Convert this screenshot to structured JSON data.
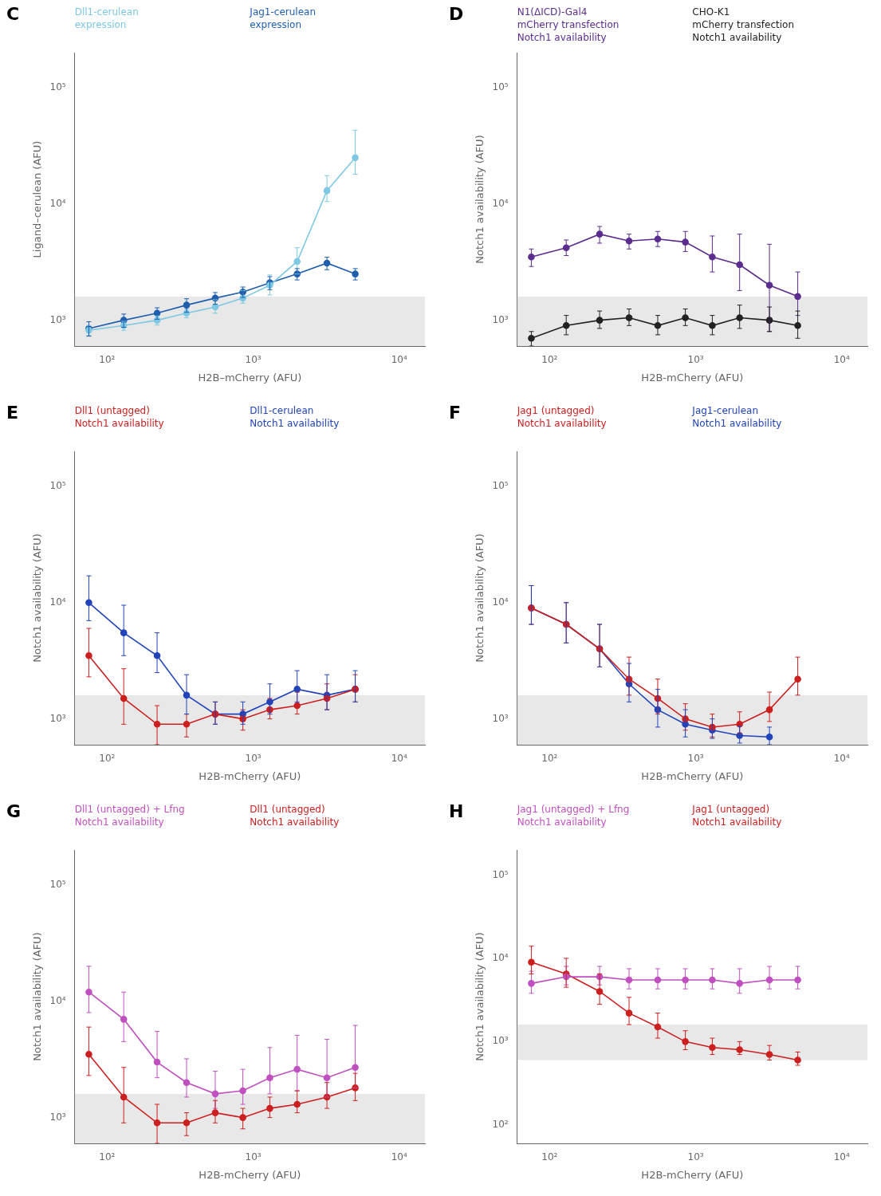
{
  "chart_data": [
    {
      "type": "line",
      "title": "C",
      "log": true,
      "grid": false,
      "marker": "circle",
      "line_style": "solid",
      "xlabel": "H2B–mCherry (AFU)",
      "ylabel": "Ligand–cerulean (AFU)",
      "xlim": [
        60,
        15000
      ],
      "ylim": [
        600,
        200000
      ],
      "xticks": [
        {
          "value": 100,
          "label": "10²"
        },
        {
          "value": 1000,
          "label": "10³"
        },
        {
          "value": 10000,
          "label": "10⁴"
        }
      ],
      "yticks": [
        {
          "value": 1000,
          "label": "10³"
        },
        {
          "value": 10000,
          "label": "10⁴"
        },
        {
          "value": 100000,
          "label": "10⁵"
        }
      ],
      "band": {
        "from": 600,
        "to": 1600,
        "color": "#E8E8E8"
      },
      "series": [
        {
          "color": "#7EC8E3",
          "x": [
            75,
            130,
            220,
            350,
            550,
            850,
            1300,
            2000,
            3200,
            5000
          ],
          "values": [
            820,
            900,
            1000,
            1150,
            1300,
            1550,
            2000,
            3200,
            13000,
            25000
          ],
          "yerr_lo": [
            80,
            80,
            90,
            100,
            150,
            150,
            350,
            700,
            2500,
            7000
          ],
          "yerr_hi": [
            80,
            80,
            90,
            100,
            200,
            250,
            450,
            1000,
            4500,
            18000
          ]
        },
        {
          "color": "#1F5FAD",
          "x": [
            75,
            130,
            220,
            350,
            550,
            850,
            1300,
            2000,
            3200,
            5000
          ],
          "values": [
            850,
            1000,
            1150,
            1350,
            1550,
            1750,
            2100,
            2500,
            3100,
            2500
          ],
          "yerr_lo": [
            120,
            130,
            130,
            180,
            180,
            180,
            270,
            280,
            380,
            280
          ],
          "yerr_hi": [
            120,
            130,
            130,
            180,
            180,
            180,
            270,
            280,
            380,
            280
          ]
        }
      ],
      "annotations": [
        {
          "text": "Dll1-cerulean",
          "color": "#7EC8E3"
        },
        {
          "text": "expression",
          "color": "#7EC8E3"
        },
        {
          "text": "Jag1-cerulean",
          "color": "#1F5FAD"
        },
        {
          "text": "expression",
          "color": "#1F5FAD"
        }
      ]
    },
    {
      "type": "line",
      "title": "D",
      "log": true,
      "grid": false,
      "marker": "circle",
      "line_style": "solid",
      "xlabel": "H2B-mCherry (AFU)",
      "ylabel": "Notch1 availability (AFU)",
      "xlim": [
        60,
        15000
      ],
      "ylim": [
        600,
        200000
      ],
      "xticks": [
        {
          "value": 100,
          "label": "10²"
        },
        {
          "value": 1000,
          "label": "10³"
        },
        {
          "value": 10000,
          "label": "10⁴"
        }
      ],
      "yticks": [
        {
          "value": 1000,
          "label": "10³"
        },
        {
          "value": 10000,
          "label": "10⁴"
        },
        {
          "value": 100000,
          "label": "10⁵"
        }
      ],
      "band": {
        "from": 600,
        "to": 1600,
        "color": "#E8E8E8"
      },
      "series": [
        {
          "color": "#5B2D8E",
          "x": [
            75,
            130,
            220,
            350,
            550,
            850,
            1300,
            2000,
            3200,
            5000
          ],
          "values": [
            3500,
            4200,
            5500,
            4800,
            5000,
            4700,
            3500,
            3000,
            2000,
            1600
          ],
          "yerr_lo": [
            600,
            600,
            900,
            700,
            700,
            800,
            900,
            1200,
            1200,
            500
          ],
          "yerr_hi": [
            600,
            700,
            900,
            700,
            800,
            1100,
            1800,
            2500,
            2500,
            1000
          ]
        },
        {
          "color": "#222222",
          "x": [
            75,
            130,
            220,
            350,
            550,
            850,
            1300,
            2000,
            3200,
            5000
          ],
          "values": [
            700,
            900,
            1000,
            1050,
            900,
            1050,
            900,
            1050,
            1000,
            900
          ],
          "yerr_lo": [
            100,
            150,
            150,
            150,
            150,
            150,
            150,
            200,
            200,
            200
          ],
          "yerr_hi": [
            100,
            200,
            200,
            200,
            200,
            200,
            200,
            300,
            300,
            300
          ]
        }
      ],
      "annotations": [
        {
          "text": "N1(ΔICD)-Gal4",
          "color": "#5B2D8E"
        },
        {
          "text": "mCherry transfection",
          "color": "#5B2D8E"
        },
        {
          "text": "Notch1 availability",
          "color": "#5B2D8E"
        },
        {
          "text": "CHO-K1",
          "color": "#222222"
        },
        {
          "text": "mCherry transfection",
          "color": "#222222"
        },
        {
          "text": "Notch1 availability",
          "color": "#222222"
        }
      ]
    },
    {
      "type": "line",
      "title": "E",
      "log": true,
      "grid": false,
      "marker": "circle",
      "line_style": "solid",
      "xlabel": "H2B-mCherry (AFU)",
      "ylabel": "Notch1 availability (AFU)",
      "xlim": [
        60,
        15000
      ],
      "ylim": [
        600,
        200000
      ],
      "xticks": [
        {
          "value": 100,
          "label": "10²"
        },
        {
          "value": 1000,
          "label": "10³"
        },
        {
          "value": 10000,
          "label": "10⁴"
        }
      ],
      "yticks": [
        {
          "value": 1000,
          "label": "10³"
        },
        {
          "value": 10000,
          "label": "10⁴"
        },
        {
          "value": 100000,
          "label": "10⁵"
        }
      ],
      "band": {
        "from": 600,
        "to": 1600,
        "color": "#E8E8E8"
      },
      "series": [
        {
          "color": "#CC2020",
          "x": [
            75,
            130,
            220,
            350,
            550,
            850,
            1300,
            2000,
            3200,
            5000
          ],
          "values": [
            3500,
            1500,
            900,
            900,
            1100,
            1000,
            1200,
            1300,
            1500,
            1800
          ],
          "yerr_lo": [
            1200,
            600,
            300,
            200,
            200,
            200,
            200,
            200,
            300,
            400
          ],
          "yerr_hi": [
            2500,
            1200,
            400,
            200,
            300,
            200,
            300,
            400,
            500,
            600
          ]
        },
        {
          "color": "#2244BB",
          "x": [
            75,
            130,
            220,
            350,
            550,
            850,
            1300,
            2000,
            3200,
            5000
          ],
          "values": [
            10000,
            5500,
            3500,
            1600,
            1100,
            1100,
            1400,
            1800,
            1600,
            1800
          ],
          "yerr_lo": [
            3000,
            2000,
            1000,
            500,
            200,
            200,
            300,
            400,
            400,
            400
          ],
          "yerr_hi": [
            7000,
            4000,
            2000,
            800,
            300,
            300,
            600,
            800,
            800,
            800
          ]
        }
      ],
      "annotations": [
        {
          "text": "Dll1 (untagged)",
          "color": "#CC2020"
        },
        {
          "text": "Notch1 availability",
          "color": "#CC2020"
        },
        {
          "text": "Dll1-cerulean",
          "color": "#2244BB"
        },
        {
          "text": "Notch1 availability",
          "color": "#2244BB"
        }
      ]
    },
    {
      "type": "line",
      "title": "F",
      "log": true,
      "grid": false,
      "marker": "circle",
      "line_style": "solid",
      "xlabel": "H2B-mCherry (AFU)",
      "ylabel": "Notch1 availability (AFU)",
      "xlim": [
        60,
        15000
      ],
      "ylim": [
        600,
        200000
      ],
      "xticks": [
        {
          "value": 100,
          "label": "10²"
        },
        {
          "value": 1000,
          "label": "10³"
        },
        {
          "value": 10000,
          "label": "10⁴"
        }
      ],
      "yticks": [
        {
          "value": 1000,
          "label": "10³"
        },
        {
          "value": 10000,
          "label": "10⁴"
        },
        {
          "value": 100000,
          "label": "10⁵"
        }
      ],
      "band": {
        "from": 600,
        "to": 1600,
        "color": "#E8E8E8"
      },
      "series": [
        {
          "color": "#CC2020",
          "x": [
            75,
            130,
            220,
            350,
            550,
            850,
            1300,
            2000,
            3200,
            5000
          ],
          "values": [
            9000,
            6500,
            4000,
            2200,
            1500,
            1000,
            850,
            900,
            1200,
            2200
          ],
          "yerr_lo": [
            2500,
            2000,
            1200,
            600,
            400,
            200,
            150,
            150,
            250,
            600
          ],
          "yerr_hi": [
            5000,
            3500,
            2500,
            1200,
            700,
            350,
            250,
            250,
            500,
            1200
          ]
        },
        {
          "color": "#2244BB",
          "x": [
            75,
            130,
            220,
            350,
            550,
            850,
            1300,
            2000,
            3200
          ],
          "values": [
            9000,
            6500,
            4000,
            2000,
            1200,
            900,
            800,
            720,
            700
          ],
          "yerr_lo": [
            2500,
            2000,
            1200,
            600,
            350,
            200,
            120,
            100,
            100
          ],
          "yerr_hi": [
            5000,
            3500,
            2500,
            1000,
            600,
            300,
            200,
            150,
            150
          ]
        }
      ],
      "annotations": [
        {
          "text": "Jag1 (untagged)",
          "color": "#CC2020"
        },
        {
          "text": "Notch1 availability",
          "color": "#CC2020"
        },
        {
          "text": "Jag1-cerulean",
          "color": "#2244BB"
        },
        {
          "text": "Notch1 availability",
          "color": "#2244BB"
        }
      ]
    },
    {
      "type": "line",
      "title": "G",
      "log": true,
      "grid": false,
      "marker": "circle",
      "line_style": "solid",
      "xlabel": "H2B-mCherry (AFU)",
      "ylabel": "Notch1 availability (AFU)",
      "xlim": [
        60,
        15000
      ],
      "ylim": [
        600,
        200000
      ],
      "xticks": [
        {
          "value": 100,
          "label": "10²"
        },
        {
          "value": 1000,
          "label": "10³"
        },
        {
          "value": 10000,
          "label": "10⁴"
        }
      ],
      "yticks": [
        {
          "value": 1000,
          "label": "10³"
        },
        {
          "value": 10000,
          "label": "10⁴"
        },
        {
          "value": 100000,
          "label": "10⁵"
        }
      ],
      "band": {
        "from": 600,
        "to": 1600,
        "color": "#E8E8E8"
      },
      "series": [
        {
          "color": "#C050C0",
          "x": [
            75,
            130,
            220,
            350,
            550,
            850,
            1300,
            2000,
            3200,
            5000
          ],
          "values": [
            12000,
            7000,
            3000,
            2000,
            1600,
            1700,
            2200,
            2600,
            2200,
            2700
          ],
          "yerr_lo": [
            4000,
            2500,
            800,
            500,
            400,
            400,
            600,
            900,
            700,
            900
          ],
          "yerr_hi": [
            8000,
            5000,
            2500,
            1200,
            900,
            900,
            1800,
            2500,
            2500,
            3500
          ]
        },
        {
          "color": "#CC2020",
          "x": [
            75,
            130,
            220,
            350,
            550,
            850,
            1300,
            2000,
            3200,
            5000
          ],
          "values": [
            3500,
            1500,
            900,
            900,
            1100,
            1000,
            1200,
            1300,
            1500,
            1800
          ],
          "yerr_lo": [
            1200,
            600,
            300,
            200,
            200,
            200,
            200,
            200,
            300,
            400
          ],
          "yerr_hi": [
            2500,
            1200,
            400,
            200,
            300,
            200,
            300,
            400,
            500,
            600
          ]
        }
      ],
      "annotations": [
        {
          "text": "Dll1 (untagged) + Lfng",
          "color": "#C050C0"
        },
        {
          "text": "Notch1 availability",
          "color": "#C050C0"
        },
        {
          "text": "Dll1 (untagged)",
          "color": "#CC2020"
        },
        {
          "text": "Notch1 availability",
          "color": "#CC2020"
        }
      ]
    },
    {
      "type": "line",
      "title": "H",
      "log": true,
      "grid": false,
      "marker": "circle",
      "line_style": "solid",
      "xlabel": "H2B-mCherry (AFU)",
      "ylabel": "Notch1 availability (AFU)",
      "xlim": [
        60,
        15000
      ],
      "ylim": [
        60,
        200000
      ],
      "xticks": [
        {
          "value": 100,
          "label": "10²"
        },
        {
          "value": 1000,
          "label": "10³"
        },
        {
          "value": 10000,
          "label": "10⁴"
        }
      ],
      "yticks": [
        {
          "value": 100,
          "label": "10²"
        },
        {
          "value": 1000,
          "label": "10³"
        },
        {
          "value": 10000,
          "label": "10⁴"
        },
        {
          "value": 100000,
          "label": "10⁵"
        }
      ],
      "band": {
        "from": 600,
        "to": 1600,
        "color": "#E8E8E8"
      },
      "series": [
        {
          "color": "#C050C0",
          "x": [
            75,
            130,
            220,
            350,
            550,
            850,
            1300,
            2000,
            3200,
            5000
          ],
          "values": [
            5000,
            6000,
            6000,
            5500,
            5500,
            5500,
            5500,
            5000,
            5500,
            5500
          ],
          "yerr_lo": [
            1200,
            1200,
            1200,
            1200,
            1200,
            1200,
            1200,
            1200,
            1200,
            1200
          ],
          "yerr_hi": [
            2000,
            2000,
            2000,
            2000,
            2000,
            2000,
            2000,
            2500,
            2500,
            2500
          ]
        },
        {
          "color": "#CC2020",
          "x": [
            75,
            130,
            220,
            350,
            550,
            850,
            1300,
            2000,
            3200,
            5000
          ],
          "values": [
            9000,
            6500,
            4000,
            2200,
            1500,
            1000,
            850,
            800,
            700,
            600
          ],
          "yerr_lo": [
            2500,
            2000,
            1200,
            600,
            400,
            200,
            150,
            100,
            100,
            80
          ],
          "yerr_hi": [
            5000,
            3500,
            2500,
            1200,
            700,
            350,
            250,
            200,
            200,
            150
          ]
        }
      ],
      "annotations": [
        {
          "text": "Jag1 (untagged) + Lfng",
          "color": "#C050C0"
        },
        {
          "text": "Notch1 availability",
          "color": "#C050C0"
        },
        {
          "text": "Jag1 (untagged)",
          "color": "#CC2020"
        },
        {
          "text": "Notch1 availability",
          "color": "#CC2020"
        }
      ]
    }
  ]
}
